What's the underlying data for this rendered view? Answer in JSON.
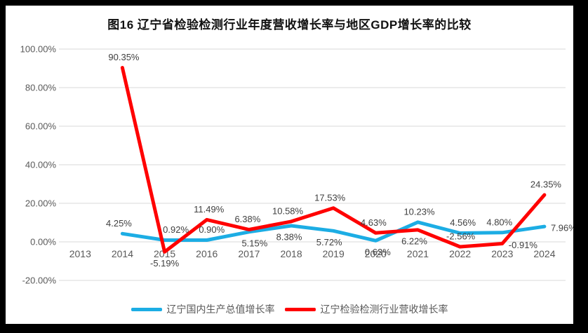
{
  "window": {
    "frame_color": "#000000",
    "card_color": "#ffffff"
  },
  "chart_data": {
    "type": "line",
    "title": "图16  辽宁省检验检测行业年度营收增长率与地区GDP增长率的比较",
    "categories": [
      "2013",
      "2014",
      "2015",
      "2016",
      "2017",
      "2018",
      "2019",
      "2020",
      "2021",
      "2022",
      "2023",
      "2024"
    ],
    "series": [
      {
        "name": "辽宁国内生产总值增长率",
        "color": "#1CADE4",
        "values": [
          null,
          4.25,
          0.92,
          0.9,
          5.15,
          8.38,
          5.72,
          0.63,
          10.23,
          4.56,
          4.8,
          7.96
        ],
        "labels": [
          null,
          "4.25%",
          "0.92%",
          "0.90%",
          "5.15%",
          "8.38%",
          "5.72%",
          "0.63%",
          "10.23%",
          "4.56%",
          "4.80%",
          "7.96%"
        ],
        "label_pos": [
          null,
          "above",
          "above",
          "above",
          "below",
          "below",
          "below",
          "below",
          "above",
          "above",
          "above",
          "right"
        ],
        "label_dx": [
          0,
          -5,
          16,
          7,
          8,
          -3,
          -6,
          3,
          2,
          4,
          -4,
          0
        ]
      },
      {
        "name": "辽宁检验检测行业营收增长率",
        "color": "#FF0000",
        "values": [
          null,
          90.35,
          -5.19,
          11.49,
          6.38,
          10.58,
          17.53,
          4.63,
          6.22,
          -2.56,
          -0.91,
          24.35
        ],
        "labels": [
          null,
          "90.35%",
          "-5.19%",
          "11.49%",
          "6.38%",
          "10.58%",
          "17.53%",
          "4.63%",
          "6.22%",
          "-2.56%",
          "-0.91%",
          "24.35%"
        ],
        "label_pos": [
          null,
          "above",
          "below",
          "above",
          "above",
          "above",
          "above",
          "above",
          "below",
          "above",
          "right",
          "above"
        ],
        "label_dx": [
          0,
          2,
          0,
          3,
          -2,
          -5,
          -5,
          -3,
          -5,
          1,
          0,
          2
        ]
      }
    ],
    "y_tick_labels": [
      "100.00%",
      "80.00%",
      "60.00%",
      "40.00%",
      "20.00%",
      "0.00%",
      "-20.00%"
    ],
    "y_tick_values": [
      100,
      80,
      60,
      40,
      20,
      0,
      -20
    ],
    "ylim": [
      -20,
      100
    ],
    "grid": true,
    "legend_position": "bottom"
  }
}
